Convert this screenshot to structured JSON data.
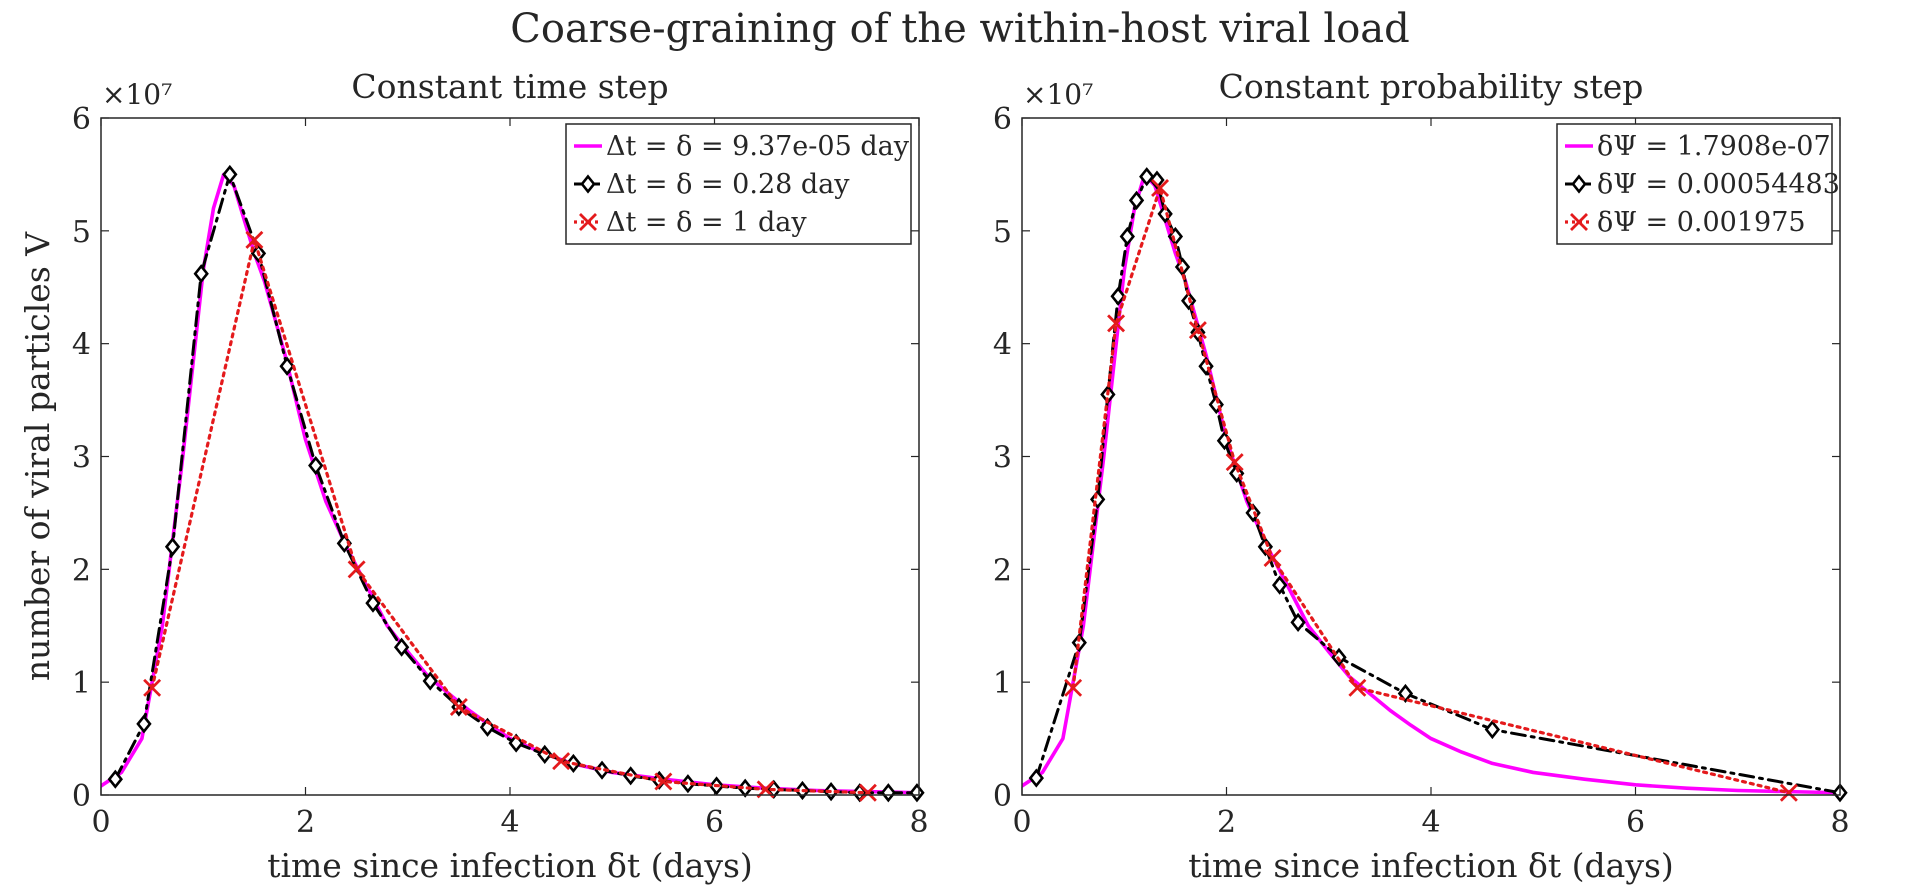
{
  "figure": {
    "suptitle": "Coarse-graining of the within-host viral load"
  },
  "chart_data": [
    {
      "type": "line",
      "title": "Constant time step",
      "xlabel": "time since infection δt (days)",
      "ylabel": "number of viral particles V",
      "y_exponent_label": "×10⁷",
      "xlim": [
        0,
        8
      ],
      "ylim": [
        0,
        6
      ],
      "xticks": [
        "0",
        "2",
        "4",
        "6",
        "8"
      ],
      "yticks": [
        "0",
        "1",
        "2",
        "3",
        "4",
        "5",
        "6"
      ],
      "legend_position": "top-right",
      "series": [
        {
          "name": "Δt = δ = 9.37e-05 day",
          "color": "#ff00ff",
          "line_style": "solid",
          "marker": "none",
          "x": [
            0,
            0.2,
            0.4,
            0.6,
            0.8,
            1.0,
            1.1,
            1.2,
            1.3,
            1.4,
            1.5,
            1.6,
            1.8,
            2.0,
            2.2,
            2.4,
            2.6,
            2.8,
            3.0,
            3.2,
            3.4,
            3.6,
            3.8,
            4.0,
            4.3,
            4.6,
            5.0,
            5.5,
            6.0,
            6.5,
            7.0,
            7.5,
            8.0
          ],
          "y": [
            0.08,
            0.2,
            0.5,
            1.5,
            3.0,
            4.65,
            5.2,
            5.5,
            5.4,
            5.1,
            4.8,
            4.55,
            3.9,
            3.15,
            2.6,
            2.2,
            1.85,
            1.5,
            1.27,
            1.05,
            0.9,
            0.75,
            0.62,
            0.5,
            0.38,
            0.28,
            0.2,
            0.14,
            0.09,
            0.06,
            0.04,
            0.03,
            0.02
          ]
        },
        {
          "name": "Δt = δ = 0.28 day",
          "color": "#000000",
          "line_style": "dash-dot",
          "marker": "diamond",
          "x": [
            0.14,
            0.42,
            0.7,
            0.98,
            1.26,
            1.54,
            1.82,
            2.1,
            2.38,
            2.66,
            2.94,
            3.22,
            3.5,
            3.78,
            4.06,
            4.34,
            4.62,
            4.9,
            5.18,
            5.46,
            5.74,
            6.02,
            6.3,
            6.58,
            6.86,
            7.14,
            7.42,
            7.7,
            7.98
          ],
          "y": [
            0.14,
            0.63,
            2.2,
            4.62,
            5.5,
            4.8,
            3.8,
            2.92,
            2.23,
            1.7,
            1.31,
            1.01,
            0.78,
            0.6,
            0.46,
            0.36,
            0.28,
            0.22,
            0.17,
            0.13,
            0.1,
            0.08,
            0.06,
            0.05,
            0.04,
            0.03,
            0.02,
            0.02,
            0.02
          ]
        },
        {
          "name": "Δt = δ = 1 day",
          "color": "#e41a1c",
          "line_style": "dotted",
          "marker": "x",
          "x": [
            0.5,
            1.5,
            2.5,
            3.5,
            4.5,
            5.5,
            6.5,
            7.5
          ],
          "y": [
            0.95,
            4.92,
            2.0,
            0.78,
            0.3,
            0.12,
            0.05,
            0.02
          ]
        }
      ]
    },
    {
      "type": "line",
      "title": "Constant probability step",
      "xlabel": "time since infection δt (days)",
      "ylabel": "",
      "y_exponent_label": "×10⁷",
      "xlim": [
        0,
        8
      ],
      "ylim": [
        0,
        6
      ],
      "xticks": [
        "0",
        "2",
        "4",
        "6",
        "8"
      ],
      "yticks": [
        "0",
        "1",
        "2",
        "3",
        "4",
        "5",
        "6"
      ],
      "legend_position": "top-right",
      "series": [
        {
          "name": "δΨ = 1.7908e-07",
          "color": "#ff00ff",
          "line_style": "solid",
          "marker": "none",
          "x": [
            0,
            0.2,
            0.4,
            0.6,
            0.8,
            1.0,
            1.1,
            1.2,
            1.3,
            1.4,
            1.5,
            1.6,
            1.8,
            2.0,
            2.2,
            2.4,
            2.6,
            2.8,
            3.0,
            3.2,
            3.4,
            3.6,
            3.8,
            4.0,
            4.3,
            4.6,
            5.0,
            5.5,
            6.0,
            6.5,
            7.0,
            7.5,
            8.0
          ],
          "y": [
            0.08,
            0.2,
            0.5,
            1.5,
            3.0,
            4.65,
            5.2,
            5.5,
            5.4,
            5.1,
            4.8,
            4.55,
            3.9,
            3.15,
            2.6,
            2.2,
            1.85,
            1.5,
            1.27,
            1.05,
            0.9,
            0.75,
            0.62,
            0.5,
            0.38,
            0.28,
            0.2,
            0.14,
            0.09,
            0.06,
            0.04,
            0.03,
            0.02
          ]
        },
        {
          "name": "δΨ = 0.00054483",
          "color": "#000000",
          "line_style": "dash-dot",
          "marker": "diamond",
          "x": [
            0.14,
            0.56,
            0.74,
            0.84,
            0.94,
            1.03,
            1.12,
            1.22,
            1.32,
            1.4,
            1.5,
            1.57,
            1.63,
            1.72,
            1.8,
            1.9,
            1.98,
            2.1,
            2.26,
            2.38,
            2.52,
            2.7,
            3.1,
            3.75,
            4.6,
            8.0
          ],
          "y": [
            0.15,
            1.35,
            2.62,
            3.55,
            4.42,
            4.95,
            5.27,
            5.48,
            5.45,
            5.15,
            4.95,
            4.68,
            4.38,
            4.1,
            3.8,
            3.46,
            3.14,
            2.85,
            2.5,
            2.2,
            1.86,
            1.53,
            1.22,
            0.9,
            0.58,
            0.02
          ]
        },
        {
          "name": "δΨ = 0.001975",
          "color": "#e41a1c",
          "line_style": "dotted",
          "marker": "x",
          "x": [
            0.5,
            0.92,
            1.35,
            1.72,
            2.08,
            2.45,
            3.28,
            7.5
          ],
          "y": [
            0.95,
            4.18,
            5.38,
            4.12,
            2.95,
            2.1,
            0.95,
            0.02
          ]
        }
      ]
    }
  ]
}
